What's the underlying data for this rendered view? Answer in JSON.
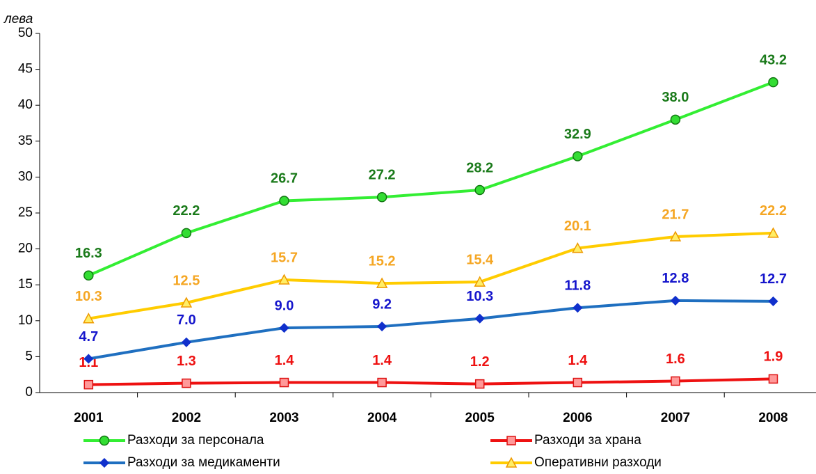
{
  "chart_data": {
    "type": "line",
    "y_label": "лева",
    "categories": [
      "2001",
      "2002",
      "2003",
      "2004",
      "2005",
      "2006",
      "2007",
      "2008"
    ],
    "ylim": [
      0,
      50
    ],
    "yticks": [
      0,
      5,
      10,
      15,
      20,
      25,
      30,
      35,
      40,
      45,
      50
    ],
    "series": [
      {
        "name": "Разходи за персонала",
        "color": "#33ee33",
        "marker": "circle",
        "marker_fill": "#33dd33",
        "marker_stroke": "#117711",
        "label_color": "#1a7a1a",
        "values": [
          16.3,
          22.2,
          26.7,
          27.2,
          28.2,
          32.9,
          38.0,
          43.2
        ],
        "value_labels": [
          "16.3",
          "22.2",
          "26.7",
          "27.2",
          "28.2",
          "32.9",
          "38.0",
          "43.2"
        ]
      },
      {
        "name": "Разходи за храна",
        "color": "#ee1111",
        "marker": "square",
        "marker_fill": "#ff9999",
        "marker_stroke": "#dd1111",
        "label_color": "#ee1111",
        "values": [
          1.1,
          1.3,
          1.4,
          1.4,
          1.2,
          1.4,
          1.6,
          1.9
        ],
        "value_labels": [
          "1.1",
          "1.3",
          "1.4",
          "1.4",
          "1.2",
          "1.4",
          "1.6",
          "1.9"
        ]
      },
      {
        "name": "Разходи за медикаменти",
        "color": "#1f6fc0",
        "marker": "diamond",
        "marker_fill": "#1030cc",
        "marker_stroke": "#1030cc",
        "label_color": "#1515cc",
        "values": [
          4.7,
          7.0,
          9.0,
          9.2,
          10.3,
          11.8,
          12.8,
          12.7
        ],
        "value_labels": [
          "4.7",
          "7.0",
          "9.0",
          "9.2",
          "10.3",
          "11.8",
          "12.8",
          "12.7"
        ]
      },
      {
        "name": "Оперативни разходи",
        "color": "#ffcc00",
        "marker": "triangle",
        "marker_fill": "#ffee66",
        "marker_stroke": "#ee9900",
        "label_color": "#f5a623",
        "values": [
          10.3,
          12.5,
          15.7,
          15.2,
          15.4,
          20.1,
          21.7,
          22.2
        ],
        "value_labels": [
          "10.3",
          "12.5",
          "15.7",
          "15.2",
          "15.4",
          "20.1",
          "21.7",
          "22.2"
        ]
      }
    ]
  }
}
